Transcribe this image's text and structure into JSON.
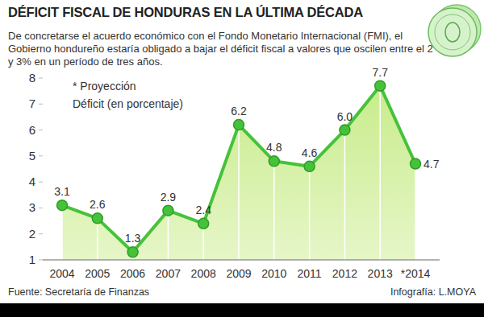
{
  "chart_data": {
    "type": "line",
    "title": "DÉFICIT FISCAL DE HONDURAS EN LA ÚLTIMA DÉCADA",
    "subtitle": "De concretarse el acuerdo económico con el Fondo Monetario Internacional (FMI), el Gobierno hondureño estaría obligado a bajar el déficit fiscal a valores que oscilen entre el 2 y 3% en un período de tres años.",
    "annotations": [
      "* Proyección"
    ],
    "y_label": "Déficit (en porcentaje)",
    "categories": [
      "2004",
      "2005",
      "2006",
      "2007",
      "2008",
      "2009",
      "2010",
      "2011",
      "2012",
      "2013",
      "*2014"
    ],
    "values": [
      3.1,
      2.6,
      1.3,
      2.9,
      2.4,
      6.2,
      4.8,
      4.6,
      6.0,
      7.7,
      4.7
    ],
    "value_labels": [
      "3.1",
      "2.6",
      "1.3",
      "2.9",
      "2.4",
      "6.2",
      "4.8",
      "4.6",
      "6.0",
      "7.7",
      "4.7"
    ],
    "color": "#46c23a",
    "marker": "circle",
    "data_labels": true,
    "ylim": [
      1,
      8
    ],
    "yticks": [
      1,
      2,
      3,
      4,
      5,
      6,
      7,
      8
    ],
    "source": "Fuente: Secretaría de Finanzas",
    "credit": "Infografía: L.MOYA"
  }
}
